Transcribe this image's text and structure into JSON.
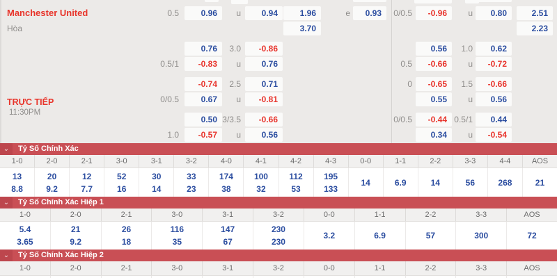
{
  "colors": {
    "positive_odds": "#2b4da0",
    "negative_odds": "#e8342c",
    "label_gray": "#8f8d8b",
    "team_red": "#e8352b",
    "section_bar_red": "#c94f55",
    "section_bar_dark_red": "#bd464d"
  },
  "icons": {
    "collapse_chevron": "⌄"
  },
  "odds_panel": {
    "home_team": "Manchester United",
    "draw_label": "Hòa",
    "live_label": "TRỰC TIẾP",
    "kickoff_time": "11:30PM",
    "rows": [
      {
        "cells": [
          {
            "col": "hdp1",
            "t": "0.5",
            "k": "hdp"
          },
          {
            "col": "box1",
            "t": "0.96",
            "k": "pos"
          },
          {
            "col": "hdp2",
            "t": "u",
            "k": "hdp"
          },
          {
            "col": "box2",
            "t": "0.94",
            "k": "pos"
          },
          {
            "col": "box3",
            "t": "1.96",
            "k": "pos"
          },
          {
            "col": "hdp3",
            "t": "e",
            "k": "hdp"
          },
          {
            "col": "box4",
            "t": "0.93",
            "k": "pos"
          },
          {
            "col": "hdp4",
            "t": "0/0.5",
            "k": "hdp"
          },
          {
            "col": "box5",
            "t": "-0.96",
            "k": "neg"
          },
          {
            "col": "hdp5",
            "t": "u",
            "k": "hdp"
          },
          {
            "col": "box6",
            "t": "0.80",
            "k": "pos"
          },
          {
            "col": "box7",
            "t": "2.51",
            "k": "pos"
          }
        ]
      },
      {
        "cells": [
          {
            "col": "box3",
            "t": "3.70",
            "k": "pos"
          },
          {
            "col": "box7",
            "t": "2.23",
            "k": "pos"
          }
        ]
      },
      {
        "cells": [
          {
            "col": "box1",
            "t": "0.76",
            "k": "pos"
          },
          {
            "col": "hdp2",
            "t": "3.0",
            "k": "hdp"
          },
          {
            "col": "box2",
            "t": "-0.86",
            "k": "neg"
          },
          {
            "col": "box5",
            "t": "0.56",
            "k": "pos"
          },
          {
            "col": "hdp5",
            "t": "1.0",
            "k": "hdp"
          },
          {
            "col": "box6",
            "t": "0.62",
            "k": "pos"
          }
        ]
      },
      {
        "cells": [
          {
            "col": "hdp1",
            "t": "0.5/1",
            "k": "hdp"
          },
          {
            "col": "box1",
            "t": "-0.83",
            "k": "neg"
          },
          {
            "col": "hdp2",
            "t": "u",
            "k": "hdp"
          },
          {
            "col": "box2",
            "t": "0.76",
            "k": "pos"
          },
          {
            "col": "hdp4",
            "t": "0.5",
            "k": "hdp"
          },
          {
            "col": "box5",
            "t": "-0.66",
            "k": "neg"
          },
          {
            "col": "hdp5",
            "t": "u",
            "k": "hdp"
          },
          {
            "col": "box6",
            "t": "-0.72",
            "k": "neg"
          }
        ]
      },
      {
        "cells": [
          {
            "col": "box1",
            "t": "-0.74",
            "k": "neg"
          },
          {
            "col": "hdp2",
            "t": "2.5",
            "k": "hdp"
          },
          {
            "col": "box2",
            "t": "0.71",
            "k": "pos"
          },
          {
            "col": "hdp4",
            "t": "0",
            "k": "hdp"
          },
          {
            "col": "box5",
            "t": "-0.65",
            "k": "neg"
          },
          {
            "col": "hdp5",
            "t": "1.5",
            "k": "hdp"
          },
          {
            "col": "box6",
            "t": "-0.66",
            "k": "neg"
          }
        ]
      },
      {
        "cells": [
          {
            "col": "hdp1",
            "t": "0/0.5",
            "k": "hdp"
          },
          {
            "col": "box1",
            "t": "0.67",
            "k": "pos"
          },
          {
            "col": "hdp2",
            "t": "u",
            "k": "hdp"
          },
          {
            "col": "box2",
            "t": "-0.81",
            "k": "neg"
          },
          {
            "col": "box5",
            "t": "0.55",
            "k": "pos"
          },
          {
            "col": "hdp5",
            "t": "u",
            "k": "hdp"
          },
          {
            "col": "box6",
            "t": "0.56",
            "k": "pos"
          }
        ]
      },
      {
        "cells": [
          {
            "col": "box1",
            "t": "0.50",
            "k": "pos"
          },
          {
            "col": "hdp2",
            "t": "3/3.5",
            "k": "hdp"
          },
          {
            "col": "box2",
            "t": "-0.66",
            "k": "neg"
          },
          {
            "col": "hdp4",
            "t": "0/0.5",
            "k": "hdp"
          },
          {
            "col": "box5",
            "t": "-0.44",
            "k": "neg"
          },
          {
            "col": "hdp5",
            "t": "0.5/1",
            "k": "hdp"
          },
          {
            "col": "box6",
            "t": "0.44",
            "k": "pos"
          }
        ]
      },
      {
        "cells": [
          {
            "col": "hdp1",
            "t": "1.0",
            "k": "hdp"
          },
          {
            "col": "box1",
            "t": "-0.57",
            "k": "neg"
          },
          {
            "col": "hdp2",
            "t": "u",
            "k": "hdp"
          },
          {
            "col": "box2",
            "t": "0.56",
            "k": "pos"
          },
          {
            "col": "box5",
            "t": "0.34",
            "k": "pos"
          },
          {
            "col": "hdp5",
            "t": "u",
            "k": "hdp"
          },
          {
            "col": "box6",
            "t": "-0.54",
            "k": "neg"
          }
        ]
      }
    ]
  },
  "sections": [
    {
      "title": "Tỷ Số Chính Xác",
      "columns": [
        "1-0",
        "2-0",
        "2-1",
        "3-0",
        "3-1",
        "3-2",
        "4-0",
        "4-1",
        "4-2",
        "4-3",
        "0-0",
        "1-1",
        "2-2",
        "3-3",
        "4-4",
        "AOS"
      ],
      "values": [
        [
          "13",
          "8.8"
        ],
        [
          "20",
          "9.2"
        ],
        [
          "12",
          "7.7"
        ],
        [
          "52",
          "16"
        ],
        [
          "30",
          "14"
        ],
        [
          "33",
          "23"
        ],
        [
          "174",
          "38"
        ],
        [
          "100",
          "32"
        ],
        [
          "112",
          "53"
        ],
        [
          "195",
          "133"
        ],
        [
          "14"
        ],
        [
          "6.9"
        ],
        [
          "14"
        ],
        [
          "56"
        ],
        [
          "268"
        ],
        [
          "21"
        ]
      ]
    },
    {
      "title": "Tỷ Số Chính Xác Hiệp 1",
      "columns": [
        "1-0",
        "2-0",
        "2-1",
        "3-0",
        "3-1",
        "3-2",
        "0-0",
        "1-1",
        "2-2",
        "3-3",
        "AOS"
      ],
      "values": [
        [
          "5.4",
          "3.65"
        ],
        [
          "21",
          "9.2"
        ],
        [
          "26",
          "18"
        ],
        [
          "116",
          "35"
        ],
        [
          "147",
          "67"
        ],
        [
          "230",
          "230"
        ],
        [
          "3.2"
        ],
        [
          "6.9"
        ],
        [
          "57"
        ],
        [
          "300"
        ],
        [
          "72"
        ]
      ]
    },
    {
      "title": "Tỷ Số Chính Xác Hiệp 2",
      "columns": [
        "1-0",
        "2-0",
        "2-1",
        "3-0",
        "3-1",
        "3-2",
        "0-0",
        "1-1",
        "2-2",
        "3-3",
        "AOS"
      ],
      "values": []
    }
  ]
}
